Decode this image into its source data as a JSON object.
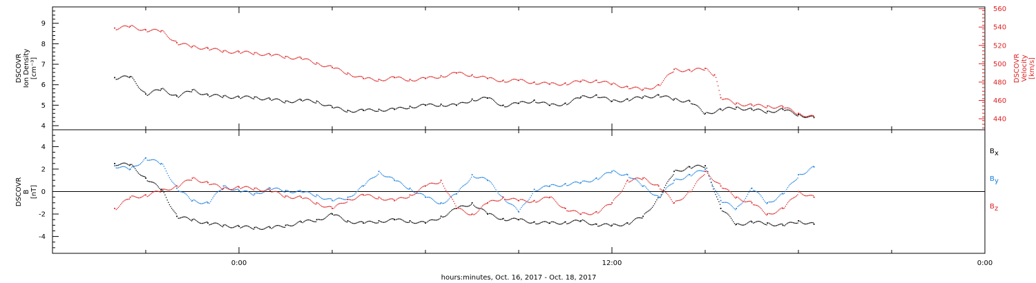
{
  "chart_data": [
    {
      "type": "scatter",
      "panel": "top",
      "y_label": [
        "DSCOVR",
        "Ion Density",
        "[cm⁻³]"
      ],
      "y2_label": [
        "DSCOVR",
        "Velocity",
        "[km/s]"
      ],
      "ylim": [
        3.8,
        9.8
      ],
      "y_ticks": [
        4,
        5,
        6,
        7,
        8,
        9
      ],
      "y2lim": [
        428,
        562
      ],
      "y2_ticks": [
        440,
        460,
        480,
        500,
        520,
        540,
        560
      ],
      "y_color": "#000000",
      "y2_color": "#dd2020",
      "series": [
        {
          "axis": "left",
          "color": "#000000",
          "points": [
            [
              -4.0,
              6.35
            ],
            [
              -3.5,
              6.4
            ],
            [
              -3.0,
              5.55
            ],
            [
              -2.5,
              5.8
            ],
            [
              -2.0,
              5.45
            ],
            [
              -1.5,
              5.75
            ],
            [
              -1.0,
              5.5
            ],
            [
              -0.5,
              5.45
            ],
            [
              0.0,
              5.4
            ],
            [
              0.5,
              5.4
            ],
            [
              1.0,
              5.3
            ],
            [
              1.5,
              5.2
            ],
            [
              2.0,
              5.25
            ],
            [
              2.5,
              5.2
            ],
            [
              3.0,
              4.9
            ],
            [
              3.5,
              4.75
            ],
            [
              4.0,
              4.75
            ],
            [
              4.5,
              4.8
            ],
            [
              5.0,
              4.8
            ],
            [
              5.5,
              4.95
            ],
            [
              6.0,
              5.0
            ],
            [
              6.5,
              5.05
            ],
            [
              7.0,
              5.0
            ],
            [
              7.5,
              5.3
            ],
            [
              8.0,
              5.35
            ],
            [
              8.5,
              5.0
            ],
            [
              9.0,
              5.1
            ],
            [
              9.5,
              5.25
            ],
            [
              10.0,
              5.0
            ],
            [
              10.5,
              5.1
            ],
            [
              11.0,
              5.4
            ],
            [
              11.5,
              5.5
            ],
            [
              12.0,
              5.2
            ],
            [
              12.5,
              5.3
            ],
            [
              13.0,
              5.4
            ],
            [
              13.5,
              5.5
            ],
            [
              14.0,
              5.3
            ],
            [
              14.5,
              5.2
            ],
            [
              15.0,
              4.6
            ],
            [
              15.5,
              4.8
            ],
            [
              16.0,
              4.9
            ],
            [
              16.5,
              4.8
            ],
            [
              17.0,
              4.7
            ],
            [
              17.5,
              4.8
            ],
            [
              18.0,
              4.55
            ],
            [
              18.5,
              4.4
            ]
          ]
        },
        {
          "axis": "right",
          "color": "#dd2020",
          "points": [
            [
              -4.0,
              539
            ],
            [
              -3.5,
              541
            ],
            [
              -3.0,
              537
            ],
            [
              -2.5,
              536
            ],
            [
              -2.0,
              523
            ],
            [
              -1.5,
              519
            ],
            [
              -1.0,
              517
            ],
            [
              -0.5,
              514
            ],
            [
              0.0,
              513
            ],
            [
              0.5,
              512
            ],
            [
              1.0,
              510
            ],
            [
              1.5,
              508
            ],
            [
              2.0,
              506
            ],
            [
              2.5,
              501
            ],
            [
              3.0,
              496
            ],
            [
              3.5,
              490
            ],
            [
              4.0,
              484
            ],
            [
              4.5,
              483
            ],
            [
              5.0,
              485
            ],
            [
              5.5,
              483
            ],
            [
              6.0,
              484
            ],
            [
              6.5,
              487
            ],
            [
              7.0,
              490
            ],
            [
              7.5,
              488
            ],
            [
              8.0,
              484
            ],
            [
              8.5,
              482
            ],
            [
              9.0,
              482
            ],
            [
              9.5,
              480
            ],
            [
              10.0,
              478
            ],
            [
              10.5,
              479
            ],
            [
              11.0,
              481
            ],
            [
              11.5,
              482
            ],
            [
              12.0,
              478
            ],
            [
              12.5,
              475
            ],
            [
              13.0,
              472
            ],
            [
              13.5,
              477
            ],
            [
              14.0,
              494
            ],
            [
              14.5,
              493
            ],
            [
              15.0,
              495
            ],
            [
              15.3,
              488
            ],
            [
              15.5,
              463
            ],
            [
              16.0,
              457
            ],
            [
              16.5,
              455
            ],
            [
              17.0,
              454
            ],
            [
              17.5,
              453
            ],
            [
              18.0,
              446
            ],
            [
              18.5,
              442
            ]
          ]
        }
      ]
    },
    {
      "type": "scatter",
      "panel": "bottom",
      "y_label": [
        "DSCOVR",
        "B",
        "[nT]"
      ],
      "ylim": [
        -5.5,
        5.5
      ],
      "y_ticks": [
        -4,
        -2,
        0,
        2,
        4
      ],
      "zero_line": true,
      "x_label": "hours:minutes, Oct. 16, 2017 - Oct. 18, 2017",
      "x_ticks": [
        "0:00",
        "12:00",
        "0:00"
      ],
      "series": [
        {
          "name": "Bx",
          "label_main": "B",
          "label_sub": "x",
          "color": "#000000",
          "points": [
            [
              -4.0,
              2.5
            ],
            [
              -3.5,
              2.4
            ],
            [
              -3.0,
              1.2
            ],
            [
              -2.5,
              0.2
            ],
            [
              -2.0,
              -2.2
            ],
            [
              -1.5,
              -2.5
            ],
            [
              -1.0,
              -2.8
            ],
            [
              -0.5,
              -3.0
            ],
            [
              0.0,
              -3.1
            ],
            [
              0.5,
              -3.2
            ],
            [
              1.0,
              -3.2
            ],
            [
              1.5,
              -3.0
            ],
            [
              2.0,
              -2.7
            ],
            [
              2.5,
              -2.5
            ],
            [
              3.0,
              -2.0
            ],
            [
              3.5,
              -2.6
            ],
            [
              4.0,
              -2.8
            ],
            [
              4.5,
              -2.6
            ],
            [
              5.0,
              -2.5
            ],
            [
              5.5,
              -2.6
            ],
            [
              6.0,
              -2.8
            ],
            [
              6.5,
              -2.2
            ],
            [
              7.0,
              -1.5
            ],
            [
              7.5,
              -1.0
            ],
            [
              8.0,
              -2.0
            ],
            [
              8.5,
              -2.4
            ],
            [
              9.0,
              -2.5
            ],
            [
              9.5,
              -2.7
            ],
            [
              10.0,
              -2.8
            ],
            [
              10.5,
              -2.7
            ],
            [
              11.0,
              -2.6
            ],
            [
              11.5,
              -2.9
            ],
            [
              12.0,
              -3.0
            ],
            [
              12.5,
              -2.8
            ],
            [
              13.0,
              -2.2
            ],
            [
              13.5,
              -0.5
            ],
            [
              14.0,
              1.8
            ],
            [
              14.5,
              2.2
            ],
            [
              15.0,
              2.3
            ],
            [
              15.5,
              -1.5
            ],
            [
              16.0,
              -2.9
            ],
            [
              16.5,
              -2.7
            ],
            [
              17.0,
              -2.8
            ],
            [
              17.5,
              -3.0
            ],
            [
              18.0,
              -2.6
            ],
            [
              18.5,
              -2.9
            ]
          ]
        },
        {
          "name": "By",
          "label_main": "B",
          "label_sub": "y",
          "color": "#1a7fe0",
          "points": [
            [
              -4.0,
              2.3
            ],
            [
              -3.5,
              2.0
            ],
            [
              -3.0,
              3.0
            ],
            [
              -2.5,
              2.5
            ],
            [
              -2.0,
              0.3
            ],
            [
              -1.5,
              -0.8
            ],
            [
              -1.0,
              -1.0
            ],
            [
              -0.5,
              0.5
            ],
            [
              0.0,
              0.1
            ],
            [
              0.5,
              -0.2
            ],
            [
              1.0,
              0.3
            ],
            [
              1.5,
              0.1
            ],
            [
              2.0,
              0.0
            ],
            [
              2.5,
              -0.3
            ],
            [
              3.0,
              -0.8
            ],
            [
              3.5,
              -0.5
            ],
            [
              4.0,
              0.5
            ],
            [
              4.5,
              1.8
            ],
            [
              5.0,
              1.0
            ],
            [
              5.5,
              0.3
            ],
            [
              6.0,
              -0.5
            ],
            [
              6.5,
              -1.0
            ],
            [
              7.0,
              -0.2
            ],
            [
              7.5,
              1.5
            ],
            [
              8.0,
              1.0
            ],
            [
              8.5,
              -0.5
            ],
            [
              9.0,
              -1.8
            ],
            [
              9.5,
              0.2
            ],
            [
              10.0,
              0.5
            ],
            [
              10.5,
              0.7
            ],
            [
              11.0,
              0.8
            ],
            [
              11.5,
              1.2
            ],
            [
              12.0,
              1.8
            ],
            [
              12.5,
              1.5
            ],
            [
              13.0,
              0.5
            ],
            [
              13.5,
              -0.5
            ],
            [
              14.0,
              1.0
            ],
            [
              14.5,
              1.5
            ],
            [
              15.0,
              2.0
            ],
            [
              15.5,
              -0.8
            ],
            [
              16.0,
              -1.5
            ],
            [
              16.5,
              0.3
            ],
            [
              17.0,
              -1.0
            ],
            [
              17.5,
              -0.2
            ],
            [
              18.0,
              1.5
            ],
            [
              18.5,
              2.2
            ]
          ]
        },
        {
          "name": "Bz",
          "label_main": "B",
          "label_sub": "z",
          "color": "#dd2020",
          "points": [
            [
              -4.0,
              -1.5
            ],
            [
              -3.5,
              -0.5
            ],
            [
              -3.0,
              -0.3
            ],
            [
              -2.5,
              0.1
            ],
            [
              -2.0,
              0.5
            ],
            [
              -1.5,
              1.2
            ],
            [
              -1.0,
              0.8
            ],
            [
              -0.5,
              0.3
            ],
            [
              0.0,
              0.4
            ],
            [
              0.5,
              0.3
            ],
            [
              1.0,
              0.1
            ],
            [
              1.5,
              -0.4
            ],
            [
              2.0,
              -0.5
            ],
            [
              2.5,
              -1.0
            ],
            [
              3.0,
              -1.5
            ],
            [
              3.5,
              -0.7
            ],
            [
              4.0,
              -0.3
            ],
            [
              4.5,
              -0.5
            ],
            [
              5.0,
              -0.8
            ],
            [
              5.5,
              -0.3
            ],
            [
              6.0,
              0.5
            ],
            [
              6.5,
              1.0
            ],
            [
              7.0,
              -1.5
            ],
            [
              7.5,
              -2.0
            ],
            [
              8.0,
              -1.0
            ],
            [
              8.5,
              -0.5
            ],
            [
              9.0,
              -0.8
            ],
            [
              9.5,
              -0.8
            ],
            [
              10.0,
              -0.5
            ],
            [
              10.5,
              -1.5
            ],
            [
              11.0,
              -2.0
            ],
            [
              11.5,
              -1.8
            ],
            [
              12.0,
              -1.0
            ],
            [
              12.5,
              1.0
            ],
            [
              13.0,
              1.2
            ],
            [
              13.5,
              0.5
            ],
            [
              14.0,
              -1.0
            ],
            [
              14.5,
              0.0
            ],
            [
              15.0,
              1.8
            ],
            [
              15.5,
              0.5
            ],
            [
              16.0,
              -0.5
            ],
            [
              16.5,
              -1.0
            ],
            [
              17.0,
              -2.0
            ],
            [
              17.5,
              -1.5
            ],
            [
              18.0,
              0.0
            ],
            [
              18.5,
              -0.5
            ]
          ]
        }
      ]
    }
  ]
}
